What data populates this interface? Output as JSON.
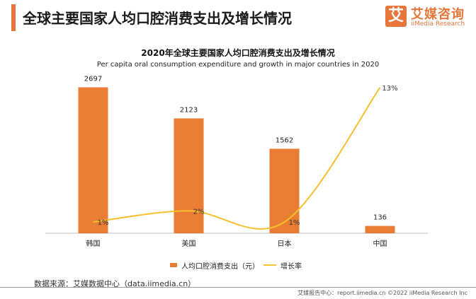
{
  "header": {
    "title": "全球主要国家人均口腔消费支出及增长情况",
    "logo_mark": "艾",
    "logo_cn": "艾媒咨询",
    "logo_en": "iiMedia Research"
  },
  "chart_data": {
    "type": "bar",
    "title": "2020年全球主要国家人均口腔消费支出及增长情况",
    "subtitle": "Per capita oral consumption expenditure and growth in major countries in 2020",
    "categories": [
      "韩国",
      "美国",
      "日本",
      "中国"
    ],
    "series": [
      {
        "name": "人均口腔消费支出（元）",
        "type": "bar",
        "values": [
          2697,
          2123,
          1562,
          136
        ],
        "labels": [
          "2697",
          "2123",
          "1562",
          "136"
        ],
        "color": "#ea7d34"
      },
      {
        "name": "增长率",
        "type": "line",
        "values": [
          1,
          2,
          1,
          13
        ],
        "labels": [
          "1%",
          "2%",
          "1%",
          "13%"
        ],
        "color": "#f6c12e",
        "axis": "secondary"
      }
    ],
    "ylim": [
      0,
      2900
    ],
    "y2lim": [
      0,
      14
    ],
    "grid": false,
    "legend": "bottom"
  },
  "footer": {
    "source": "数据来源：艾媒数据中心（data.iimedia.cn）",
    "credit": "艾媒报告中心：report.iimedia.cn  ©2022  iiMedia Research  Inc"
  }
}
